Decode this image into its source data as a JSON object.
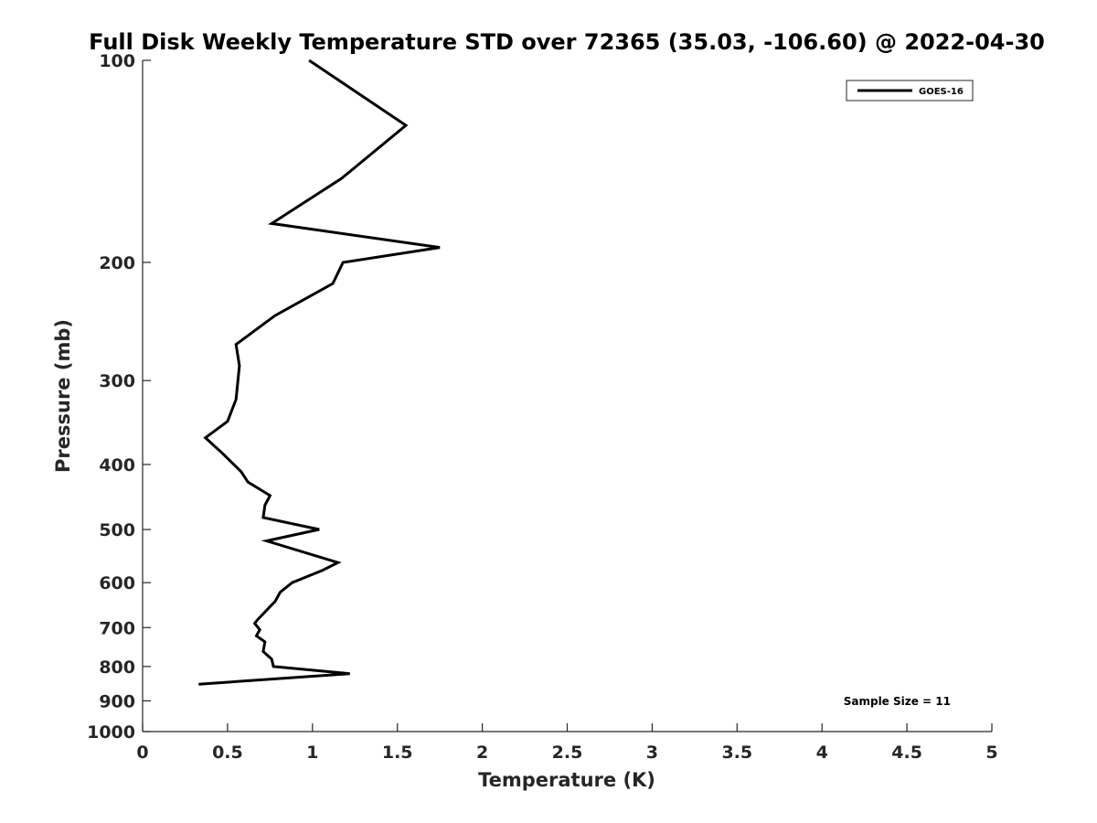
{
  "chart_data": {
    "type": "line",
    "title": "Full Disk Weekly Temperature STD over 72365 (35.03, -106.60) @ 2022-04-30",
    "xlabel": "Temperature (K)",
    "ylabel": "Pressure (mb)",
    "xlim": [
      0,
      5
    ],
    "ylim": [
      100,
      1000
    ],
    "y_scale": "log",
    "y_reversed": true,
    "grid": false,
    "legend_position": "top-right",
    "x_ticks": [
      0,
      0.5,
      1,
      1.5,
      2,
      2.5,
      3,
      3.5,
      4,
      4.5,
      5
    ],
    "x_tick_labels": [
      "0",
      "0.5",
      "1",
      "1.5",
      "2",
      "2.5",
      "3",
      "3.5",
      "4",
      "4.5",
      "5"
    ],
    "y_ticks": [
      100,
      200,
      300,
      400,
      500,
      600,
      700,
      800,
      900,
      1000
    ],
    "y_tick_labels": [
      "100",
      "200",
      "300",
      "400",
      "500",
      "600",
      "700",
      "800",
      "900",
      "1000"
    ],
    "series": [
      {
        "name": "GOES-16",
        "color": "#000000",
        "points": [
          {
            "x": 0.98,
            "y": 100
          },
          {
            "x": 1.55,
            "y": 125
          },
          {
            "x": 1.17,
            "y": 150
          },
          {
            "x": 0.76,
            "y": 175
          },
          {
            "x": 1.75,
            "y": 190
          },
          {
            "x": 1.18,
            "y": 200
          },
          {
            "x": 1.12,
            "y": 215
          },
          {
            "x": 0.78,
            "y": 240
          },
          {
            "x": 0.55,
            "y": 265
          },
          {
            "x": 0.57,
            "y": 285
          },
          {
            "x": 0.55,
            "y": 320
          },
          {
            "x": 0.5,
            "y": 345
          },
          {
            "x": 0.37,
            "y": 365
          },
          {
            "x": 0.47,
            "y": 385
          },
          {
            "x": 0.58,
            "y": 410
          },
          {
            "x": 0.62,
            "y": 425
          },
          {
            "x": 0.75,
            "y": 445
          },
          {
            "x": 0.72,
            "y": 460
          },
          {
            "x": 0.71,
            "y": 480
          },
          {
            "x": 1.04,
            "y": 500
          },
          {
            "x": 0.73,
            "y": 520
          },
          {
            "x": 1.15,
            "y": 560
          },
          {
            "x": 1.06,
            "y": 575
          },
          {
            "x": 0.88,
            "y": 600
          },
          {
            "x": 0.81,
            "y": 620
          },
          {
            "x": 0.78,
            "y": 640
          },
          {
            "x": 0.68,
            "y": 680
          },
          {
            "x": 0.66,
            "y": 690
          },
          {
            "x": 0.69,
            "y": 705
          },
          {
            "x": 0.67,
            "y": 720
          },
          {
            "x": 0.72,
            "y": 735
          },
          {
            "x": 0.71,
            "y": 760
          },
          {
            "x": 0.76,
            "y": 780
          },
          {
            "x": 0.77,
            "y": 800
          },
          {
            "x": 1.22,
            "y": 820
          },
          {
            "x": 0.33,
            "y": 850
          }
        ]
      }
    ],
    "annotation": "Sample Size = 11"
  }
}
